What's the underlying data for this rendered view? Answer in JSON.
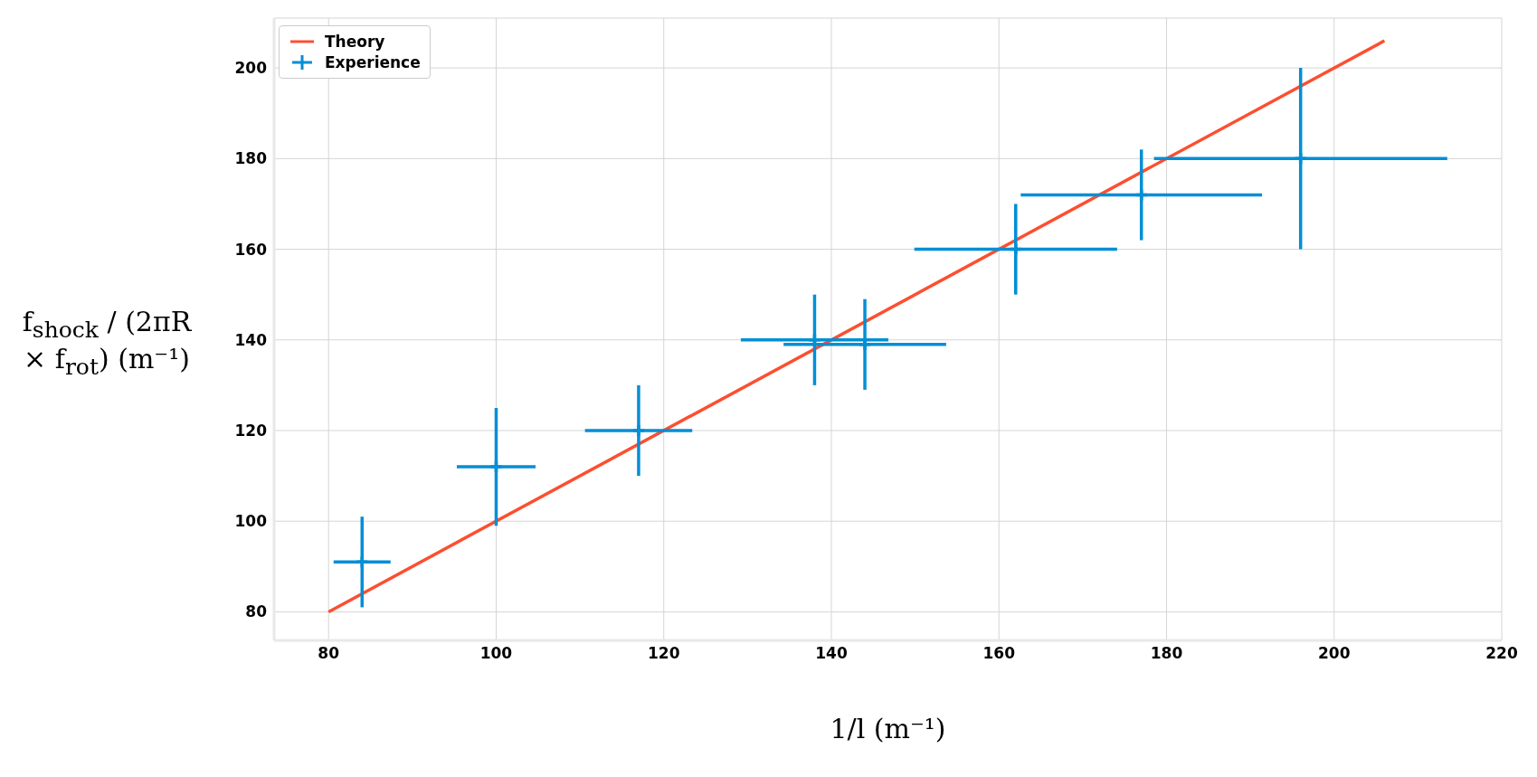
{
  "chart_data": {
    "type": "scatter",
    "xlabel": "1/l (m⁻¹)",
    "ylabel": "f$_{shock}$ / (2πR × f$_{rot}$) (m⁻¹)",
    "xlim": [
      73.5,
      220
    ],
    "xticks": [
      80,
      100,
      120,
      140,
      160,
      180,
      200,
      220
    ],
    "ylim": [
      73.7,
      211
    ],
    "yticks": [
      80,
      100,
      120,
      140,
      160,
      180,
      200
    ],
    "grid": true,
    "legend": "top left",
    "series": [
      {
        "name": "Theory",
        "type": "line",
        "color": "#fc4f30",
        "x": [
          80,
          206
        ],
        "values": [
          80,
          206
        ]
      },
      {
        "name": "Experience",
        "color": "#008fd5",
        "marker": "cross",
        "x": [
          84,
          100,
          117,
          138,
          144,
          162,
          177,
          196
        ],
        "values": [
          91,
          112,
          120,
          140,
          139,
          160,
          172,
          180
        ],
        "errors": [
          10,
          13,
          10,
          10,
          10,
          10,
          10,
          20
        ],
        "xerrors": [
          3.4,
          4.7,
          6.4,
          8.8,
          9.7,
          12.1,
          14.4,
          17.5
        ]
      }
    ]
  }
}
